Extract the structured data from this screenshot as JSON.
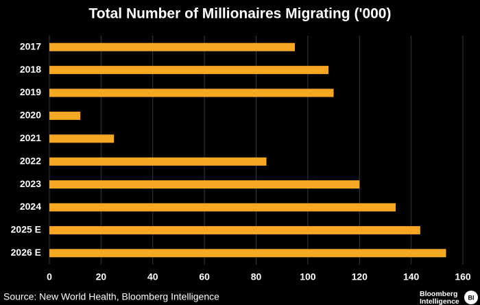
{
  "chart_data": {
    "type": "hbar",
    "title": "Total Number of Millionaires Migrating ('000)",
    "categories": [
      "2017",
      "2018",
      "2019",
      "2020",
      "2021",
      "2022",
      "2023",
      "2024",
      "2025 E",
      "2026 E"
    ],
    "values": [
      95,
      108,
      110,
      12,
      25,
      84,
      120,
      134,
      143.5,
      153.5
    ],
    "color": "#f7a823",
    "xlim": [
      0,
      160
    ],
    "xticks": [
      0,
      20,
      40,
      60,
      80,
      100,
      120,
      140,
      160
    ],
    "grid": true,
    "source": "Source: New World Health, Bloomberg Intelligence",
    "logo": {
      "line1": "Bloomberg",
      "line2": "Intelligence",
      "badge": "BI"
    }
  }
}
